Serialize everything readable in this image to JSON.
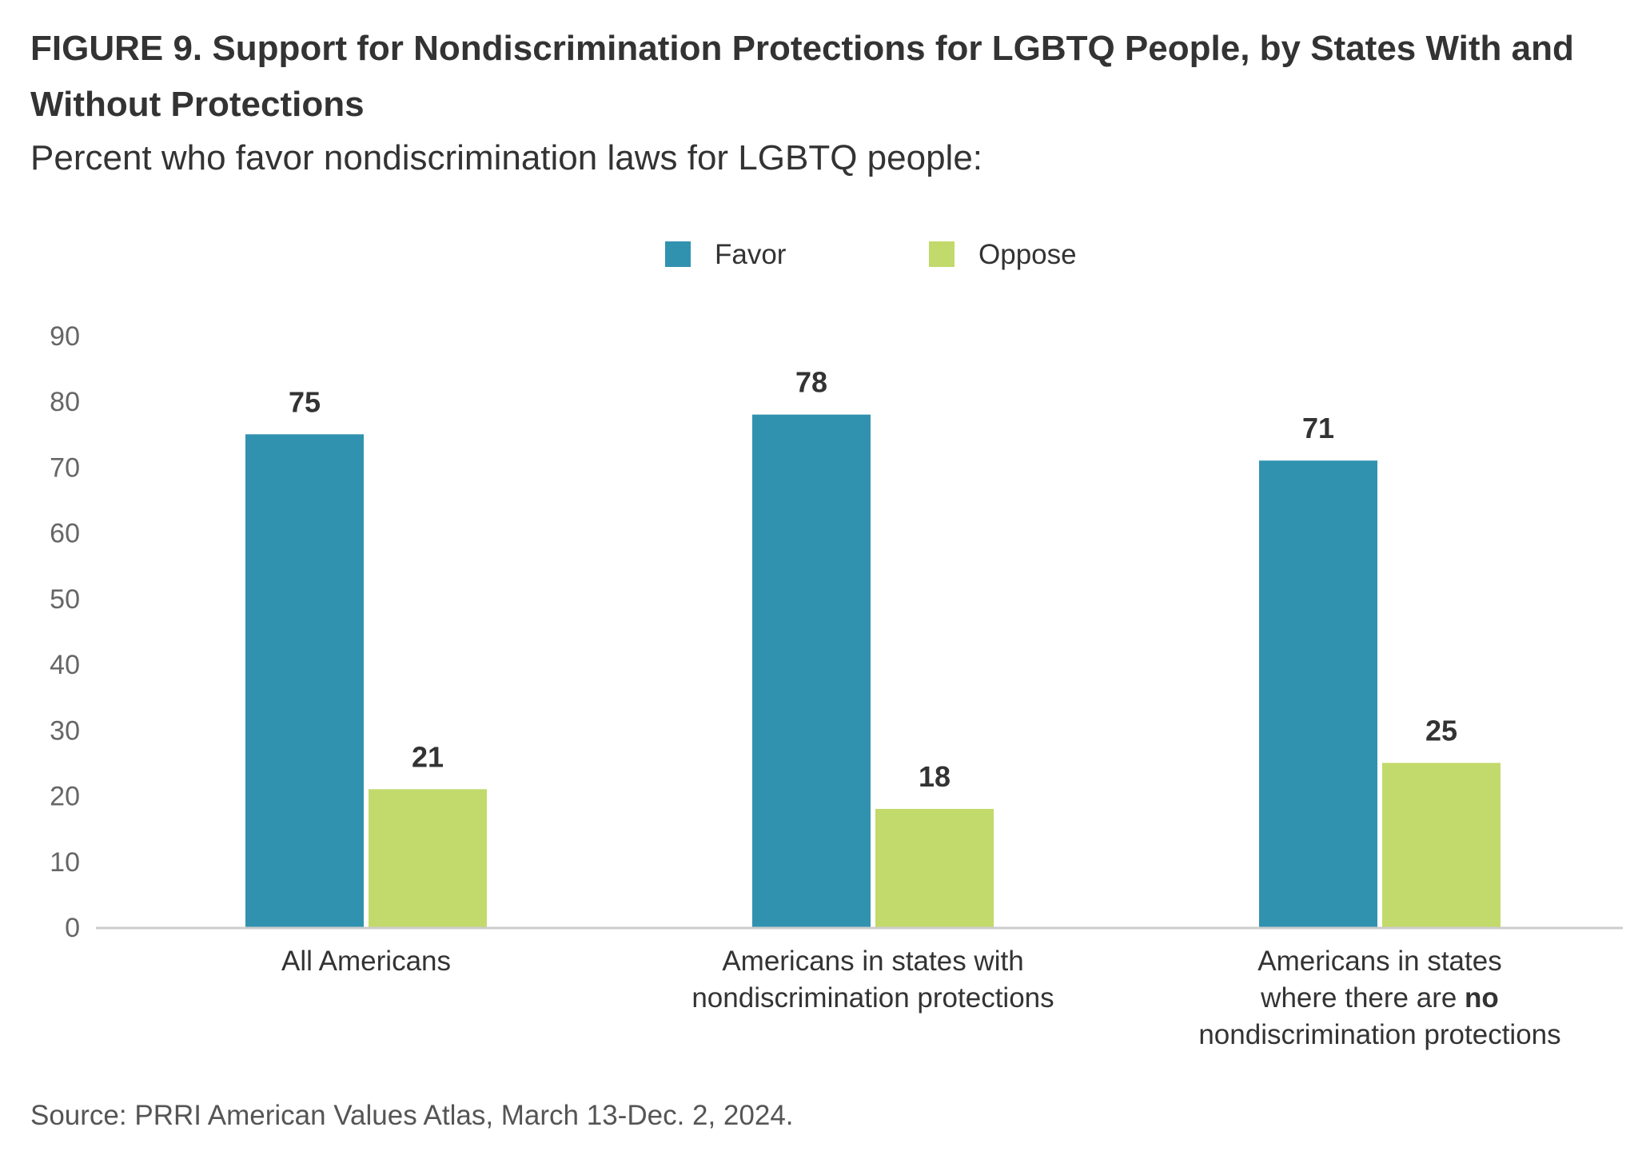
{
  "figure": {
    "title": "FIGURE 9. Support for Nondiscrimination Protections for LGBTQ People, by States With and Without Protections",
    "subtitle": "Percent who favor nondiscrimination laws for LGBTQ people:",
    "source": "Source: PRRI American Values Atlas, March 13-Dec. 2, 2024."
  },
  "chart_data": {
    "type": "bar",
    "categories": [
      [
        {
          "text": "All Americans",
          "bold": false
        }
      ],
      [
        {
          "text": "Americans in states with",
          "bold": false
        }
      ],
      [
        {
          "text": "Americans in states",
          "bold": false
        }
      ]
    ],
    "category_lines": [
      [
        [
          {
            "text": "All Americans",
            "bold": false
          }
        ]
      ],
      [
        [
          {
            "text": "Americans in states with",
            "bold": false
          }
        ],
        [
          {
            "text": "nondiscrimination protections",
            "bold": false
          }
        ]
      ],
      [
        [
          {
            "text": "Americans in states",
            "bold": false
          }
        ],
        [
          {
            "text": "where there are ",
            "bold": false
          },
          {
            "text": "no",
            "bold": true
          }
        ],
        [
          {
            "text": "nondiscrimination protections",
            "bold": false
          }
        ]
      ]
    ],
    "series": [
      {
        "name": "Favor",
        "color": "#3192b0",
        "values": [
          75,
          78,
          71
        ]
      },
      {
        "name": "Oppose",
        "color": "#c2da6b",
        "values": [
          21,
          18,
          25
        ]
      }
    ],
    "ylim": [
      0,
      90
    ],
    "yticks": [
      0,
      10,
      20,
      30,
      40,
      50,
      60,
      70,
      80,
      90
    ],
    "legend": "top-center",
    "grid": false,
    "axis_color": "#cccccc"
  }
}
